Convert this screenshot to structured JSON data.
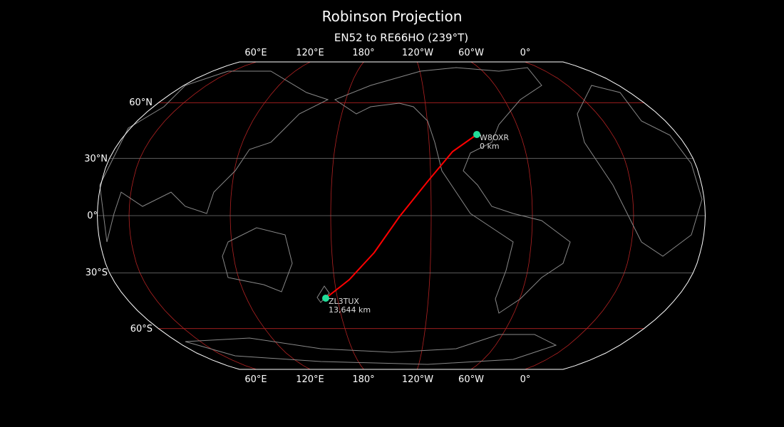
{
  "title": "Robinson Projection",
  "subtitle": "EN52 to RE66HO (239°T)",
  "lon_labels": [
    "60°E",
    "120°E",
    "180°",
    "120°W",
    "60°W",
    "0°"
  ],
  "lat_labels": [
    "60°N",
    "30°N",
    "0°",
    "30°S",
    "60°S"
  ],
  "stations": [
    {
      "call": "W8OXR",
      "distance": "0 km"
    },
    {
      "call": "ZL3TUX",
      "distance": "13,644 km"
    }
  ],
  "colors": {
    "background": "#000000",
    "path": "#ff0000",
    "marker": "#22dd99",
    "coastline": "#888888",
    "grid_major": "#b22222",
    "grid_minor": "#777777",
    "border": "#ffffff"
  }
}
